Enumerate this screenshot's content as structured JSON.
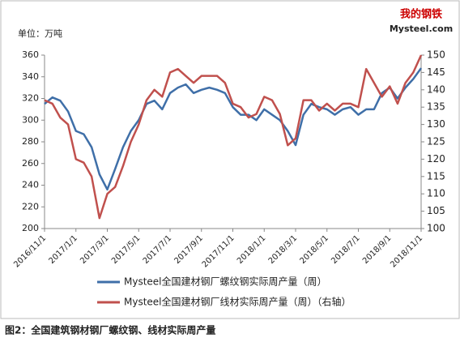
{
  "chart_data": {
    "type": "line",
    "unit_label": "单位：万吨",
    "logo_top": "我的钢铁",
    "logo_bottom": "Mysteel.com",
    "caption": "图2：全国建筑钢材钢厂螺纹钢、线材实际周产量",
    "categories": [
      "2016/11/1",
      null,
      null,
      null,
      "2017/1/1",
      null,
      null,
      null,
      "2017/3/1",
      null,
      null,
      null,
      "2017/5/1",
      null,
      null,
      null,
      "2017/7/1",
      null,
      null,
      null,
      "2017/9/1",
      null,
      null,
      null,
      "2017/11/1",
      null,
      null,
      null,
      "2018/1/1",
      null,
      null,
      null,
      "2018/3/1",
      null,
      null,
      null,
      "2018/5/1",
      null,
      null,
      null,
      "2018/7/1",
      null,
      null,
      null,
      "2018/9/1",
      null,
      null,
      null,
      "2018/11/1"
    ],
    "series": [
      {
        "name": "Mysteel全国建材钢厂螺纹钢实际周产量（周）",
        "color": "#3f6fa8",
        "values": [
          315,
          321,
          318,
          308,
          290,
          287,
          275,
          250,
          236,
          255,
          275,
          290,
          300,
          315,
          318,
          310,
          325,
          330,
          333,
          325,
          328,
          330,
          328,
          325,
          312,
          305,
          305,
          300,
          310,
          305,
          300,
          290,
          277,
          305,
          315,
          312,
          310,
          305,
          310,
          312,
          305,
          310,
          310,
          325,
          330,
          320,
          330,
          338,
          348
        ]
      },
      {
        "name": "Mysteel全国建材钢厂线材实际周产量（周）（右轴）",
        "color": "#c0504d",
        "axis": "y2",
        "values": [
          137,
          136,
          132,
          130,
          120,
          119,
          115,
          103,
          110,
          112,
          118,
          125,
          130,
          137,
          140,
          138,
          145,
          146,
          144,
          142,
          144,
          144,
          144,
          142,
          136,
          135,
          132,
          133,
          138,
          137,
          133,
          124,
          126,
          137,
          137,
          134,
          136,
          134,
          136,
          136,
          135,
          146,
          142,
          138,
          141,
          136,
          142,
          145,
          150
        ]
      }
    ],
    "ylim": [
      200,
      360
    ],
    "yticks": [
      200,
      220,
      240,
      260,
      280,
      300,
      320,
      340,
      360
    ],
    "y2lim": [
      100,
      150
    ],
    "y2ticks": [
      100,
      105,
      110,
      115,
      120,
      125,
      130,
      135,
      140,
      145,
      150
    ],
    "grid": false,
    "legend": "bottom"
  }
}
